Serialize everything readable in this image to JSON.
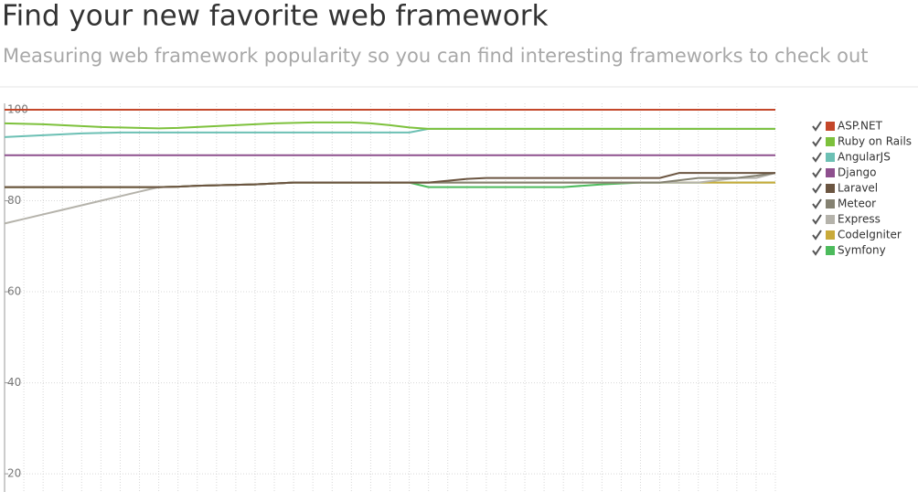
{
  "header": {
    "title": "Find your new favorite web framework",
    "subtitle": "Measuring web framework popularity so you can find interesting frameworks to check out"
  },
  "chart_data": {
    "type": "line",
    "categories": [
      null,
      null,
      null,
      null,
      null,
      null,
      null,
      null,
      null,
      null,
      null,
      null,
      null,
      null,
      null,
      null,
      null,
      null,
      null,
      null,
      null,
      null,
      null,
      null,
      null,
      null,
      null,
      null,
      null,
      null,
      null,
      null,
      null,
      null,
      null,
      null,
      null,
      null,
      null,
      null,
      null
    ],
    "ylim": [
      16,
      100
    ],
    "yticks": [
      20,
      40,
      60,
      80,
      100
    ],
    "grid": true,
    "legend": "right",
    "series": [
      {
        "name": "ASP.NET",
        "color": "#c4472a",
        "values": [
          100,
          100,
          100,
          100,
          100,
          100,
          100,
          100,
          100,
          100,
          100,
          100,
          100,
          100,
          100,
          100,
          100,
          100,
          100,
          100,
          100,
          100,
          100,
          100,
          100,
          100,
          100,
          100,
          100,
          100,
          100,
          100,
          100,
          100,
          100,
          100,
          100,
          100,
          100,
          100,
          100
        ]
      },
      {
        "name": "Ruby on Rails",
        "color": "#7dc13c",
        "values": [
          97,
          96.9,
          96.8,
          96.6,
          96.4,
          96.2,
          96.1,
          96,
          95.9,
          96,
          96.2,
          96.4,
          96.6,
          96.8,
          97,
          97.1,
          97.2,
          97.2,
          97.2,
          97,
          96.6,
          96.1,
          95.8,
          95.8,
          95.8,
          95.8,
          95.8,
          95.8,
          95.8,
          95.8,
          95.8,
          95.8,
          95.8,
          95.8,
          95.8,
          95.8,
          95.8,
          95.8,
          95.8,
          95.8,
          95.8
        ]
      },
      {
        "name": "AngularJS",
        "color": "#6cc0b4",
        "values": [
          94,
          94.2,
          94.4,
          94.6,
          94.8,
          94.9,
          95,
          95,
          95,
          95,
          95,
          95,
          95,
          95,
          95,
          95,
          95,
          95,
          95,
          95,
          95,
          95,
          95.8,
          95.8,
          95.8,
          95.8,
          95.8,
          95.8,
          95.8,
          95.8,
          95.8,
          95.8,
          95.8,
          95.8,
          95.8,
          95.8,
          95.8,
          95.8,
          95.8,
          95.8,
          95.8
        ]
      },
      {
        "name": "Django",
        "color": "#8e508e",
        "values": [
          90,
          90,
          90,
          90,
          90,
          90,
          90,
          90,
          90,
          90,
          90,
          90,
          90,
          90,
          90,
          90,
          90,
          90,
          90,
          90,
          90,
          90,
          90,
          90,
          90,
          90,
          90,
          90,
          90,
          90,
          90,
          90,
          90,
          90,
          90,
          90,
          90,
          90,
          90,
          90,
          90
        ]
      },
      {
        "name": "Laravel",
        "color": "#6b5541",
        "values": [
          83,
          83,
          83,
          83,
          83,
          83,
          83,
          83,
          83,
          83.1,
          83.3,
          83.4,
          83.5,
          83.6,
          83.8,
          84,
          84,
          84,
          84,
          84,
          84,
          84,
          84,
          84.4,
          84.8,
          85,
          85,
          85,
          85,
          85,
          85,
          85,
          85,
          85,
          85,
          86.1,
          86.1,
          86.1,
          86.1,
          86.1,
          86.1
        ]
      },
      {
        "name": "Meteor",
        "color": "#858272",
        "values": [
          83,
          83,
          83,
          83,
          83,
          83,
          83,
          83,
          83,
          83.1,
          83.3,
          83.4,
          83.5,
          83.6,
          83.8,
          84,
          84,
          84,
          84,
          84,
          84,
          84,
          84,
          84,
          84,
          84,
          84,
          84,
          84,
          84,
          84,
          84,
          84,
          84,
          84,
          84.5,
          85,
          85,
          85,
          85.5,
          86.1
        ]
      },
      {
        "name": "Express",
        "color": "#b5b3ab",
        "values": [
          75,
          76,
          77,
          78,
          79,
          80,
          81,
          82,
          83,
          83.1,
          83.3,
          83.4,
          83.5,
          83.6,
          83.8,
          84,
          84,
          84,
          84,
          84,
          84,
          84,
          84,
          84,
          84,
          84,
          84,
          84,
          84,
          84,
          84,
          84,
          84,
          84,
          84,
          84,
          84,
          84.5,
          85,
          85,
          86.1
        ]
      },
      {
        "name": "CodeIgniter",
        "color": "#c9aa3a",
        "values": [
          83,
          83,
          83,
          83,
          83,
          83,
          83,
          83,
          83,
          83.1,
          83.3,
          83.4,
          83.5,
          83.6,
          83.8,
          84,
          84,
          84,
          84,
          84,
          84,
          84,
          84,
          84,
          84,
          84,
          84,
          84,
          84,
          84,
          84,
          84,
          84,
          84,
          84,
          84,
          84,
          84,
          84,
          84,
          84
        ]
      },
      {
        "name": "Symfony",
        "color": "#4cbb5c",
        "values": [
          83,
          83,
          83,
          83,
          83,
          83,
          83,
          83,
          83,
          83.1,
          83.3,
          83.4,
          83.5,
          83.6,
          83.8,
          84,
          84,
          84,
          84,
          84,
          84,
          84,
          83,
          83,
          83,
          83,
          83,
          83,
          83,
          83,
          83.3,
          83.6,
          83.8,
          84,
          84,
          84,
          84,
          84,
          84,
          84,
          84
        ]
      }
    ]
  }
}
